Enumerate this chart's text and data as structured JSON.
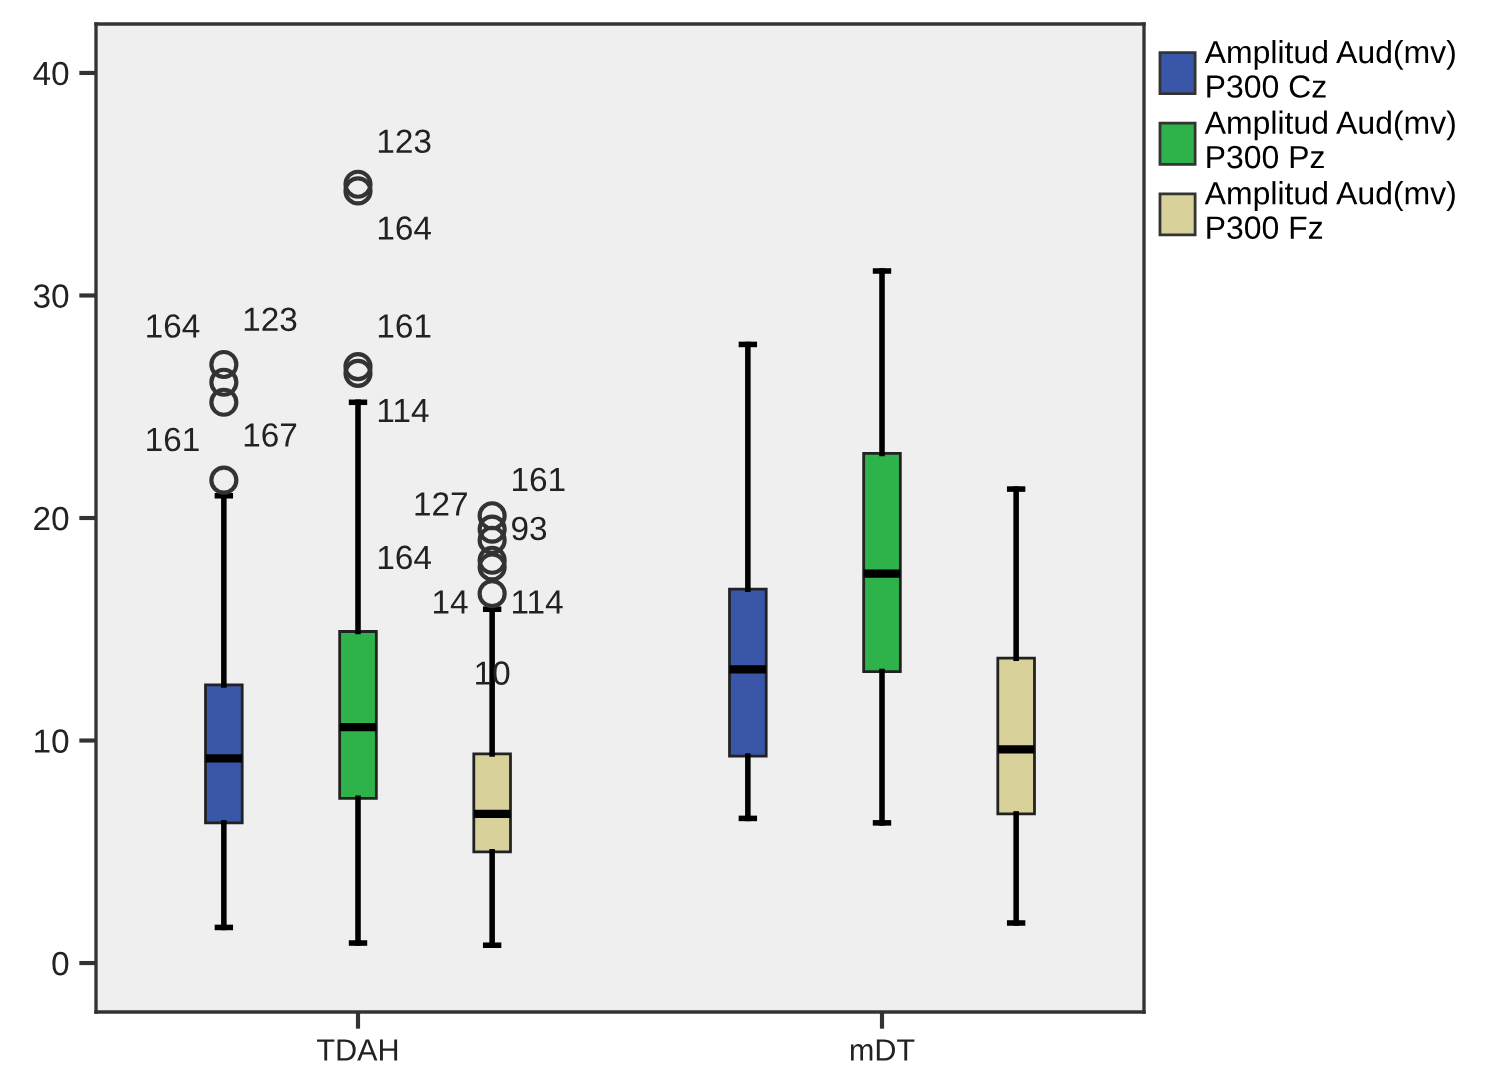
{
  "chart_data": {
    "type": "box",
    "categories": [
      "TDAH",
      "mDT"
    ],
    "series": [
      {
        "name": "Amplitud Aud(mv)\nP300 Cz",
        "color": "#3a56a8",
        "boxes": [
          {
            "low": 1.6,
            "q1": 6.3,
            "median": 9.2,
            "q3": 12.5,
            "high": 21.0,
            "outliers": [
              21.7,
              25.2,
              26.1,
              26.9
            ]
          },
          {
            "low": 6.5,
            "q1": 9.3,
            "median": 13.2,
            "q3": 16.8,
            "high": 27.8
          }
        ]
      },
      {
        "name": "Amplitud Aud(mv)\nP300 Pz",
        "color": "#2db34a",
        "boxes": [
          {
            "low": 0.9,
            "q1": 7.4,
            "median": 10.6,
            "q3": 14.9,
            "high": 25.2,
            "outliers": [
              26.5,
              26.8,
              34.7,
              35.0
            ]
          },
          {
            "low": 6.3,
            "q1": 13.1,
            "median": 17.5,
            "q3": 22.9,
            "high": 31.1
          }
        ]
      },
      {
        "name": "Amplitud Aud(mv)\nP300 Fz",
        "color": "#d8d19a",
        "boxes": [
          {
            "low": 0.8,
            "q1": 5.0,
            "median": 6.7,
            "q3": 9.4,
            "high": 15.9,
            "outliers": [
              16.6,
              17.8,
              18.1,
              19.0,
              19.5,
              20.1
            ]
          },
          {
            "low": 1.8,
            "q1": 6.7,
            "median": 9.6,
            "q3": 13.7,
            "high": 21.3
          }
        ]
      }
    ],
    "annotations": [
      "164",
      "123",
      "161",
      "167",
      "123",
      "164",
      "161",
      "114",
      "164",
      "127",
      "161",
      "93",
      "14",
      "114",
      "10"
    ],
    "ylim": [
      -2.2,
      42.2
    ],
    "yticks": [
      0,
      10,
      20,
      30,
      40
    ],
    "grid": false,
    "legend": "top right"
  }
}
